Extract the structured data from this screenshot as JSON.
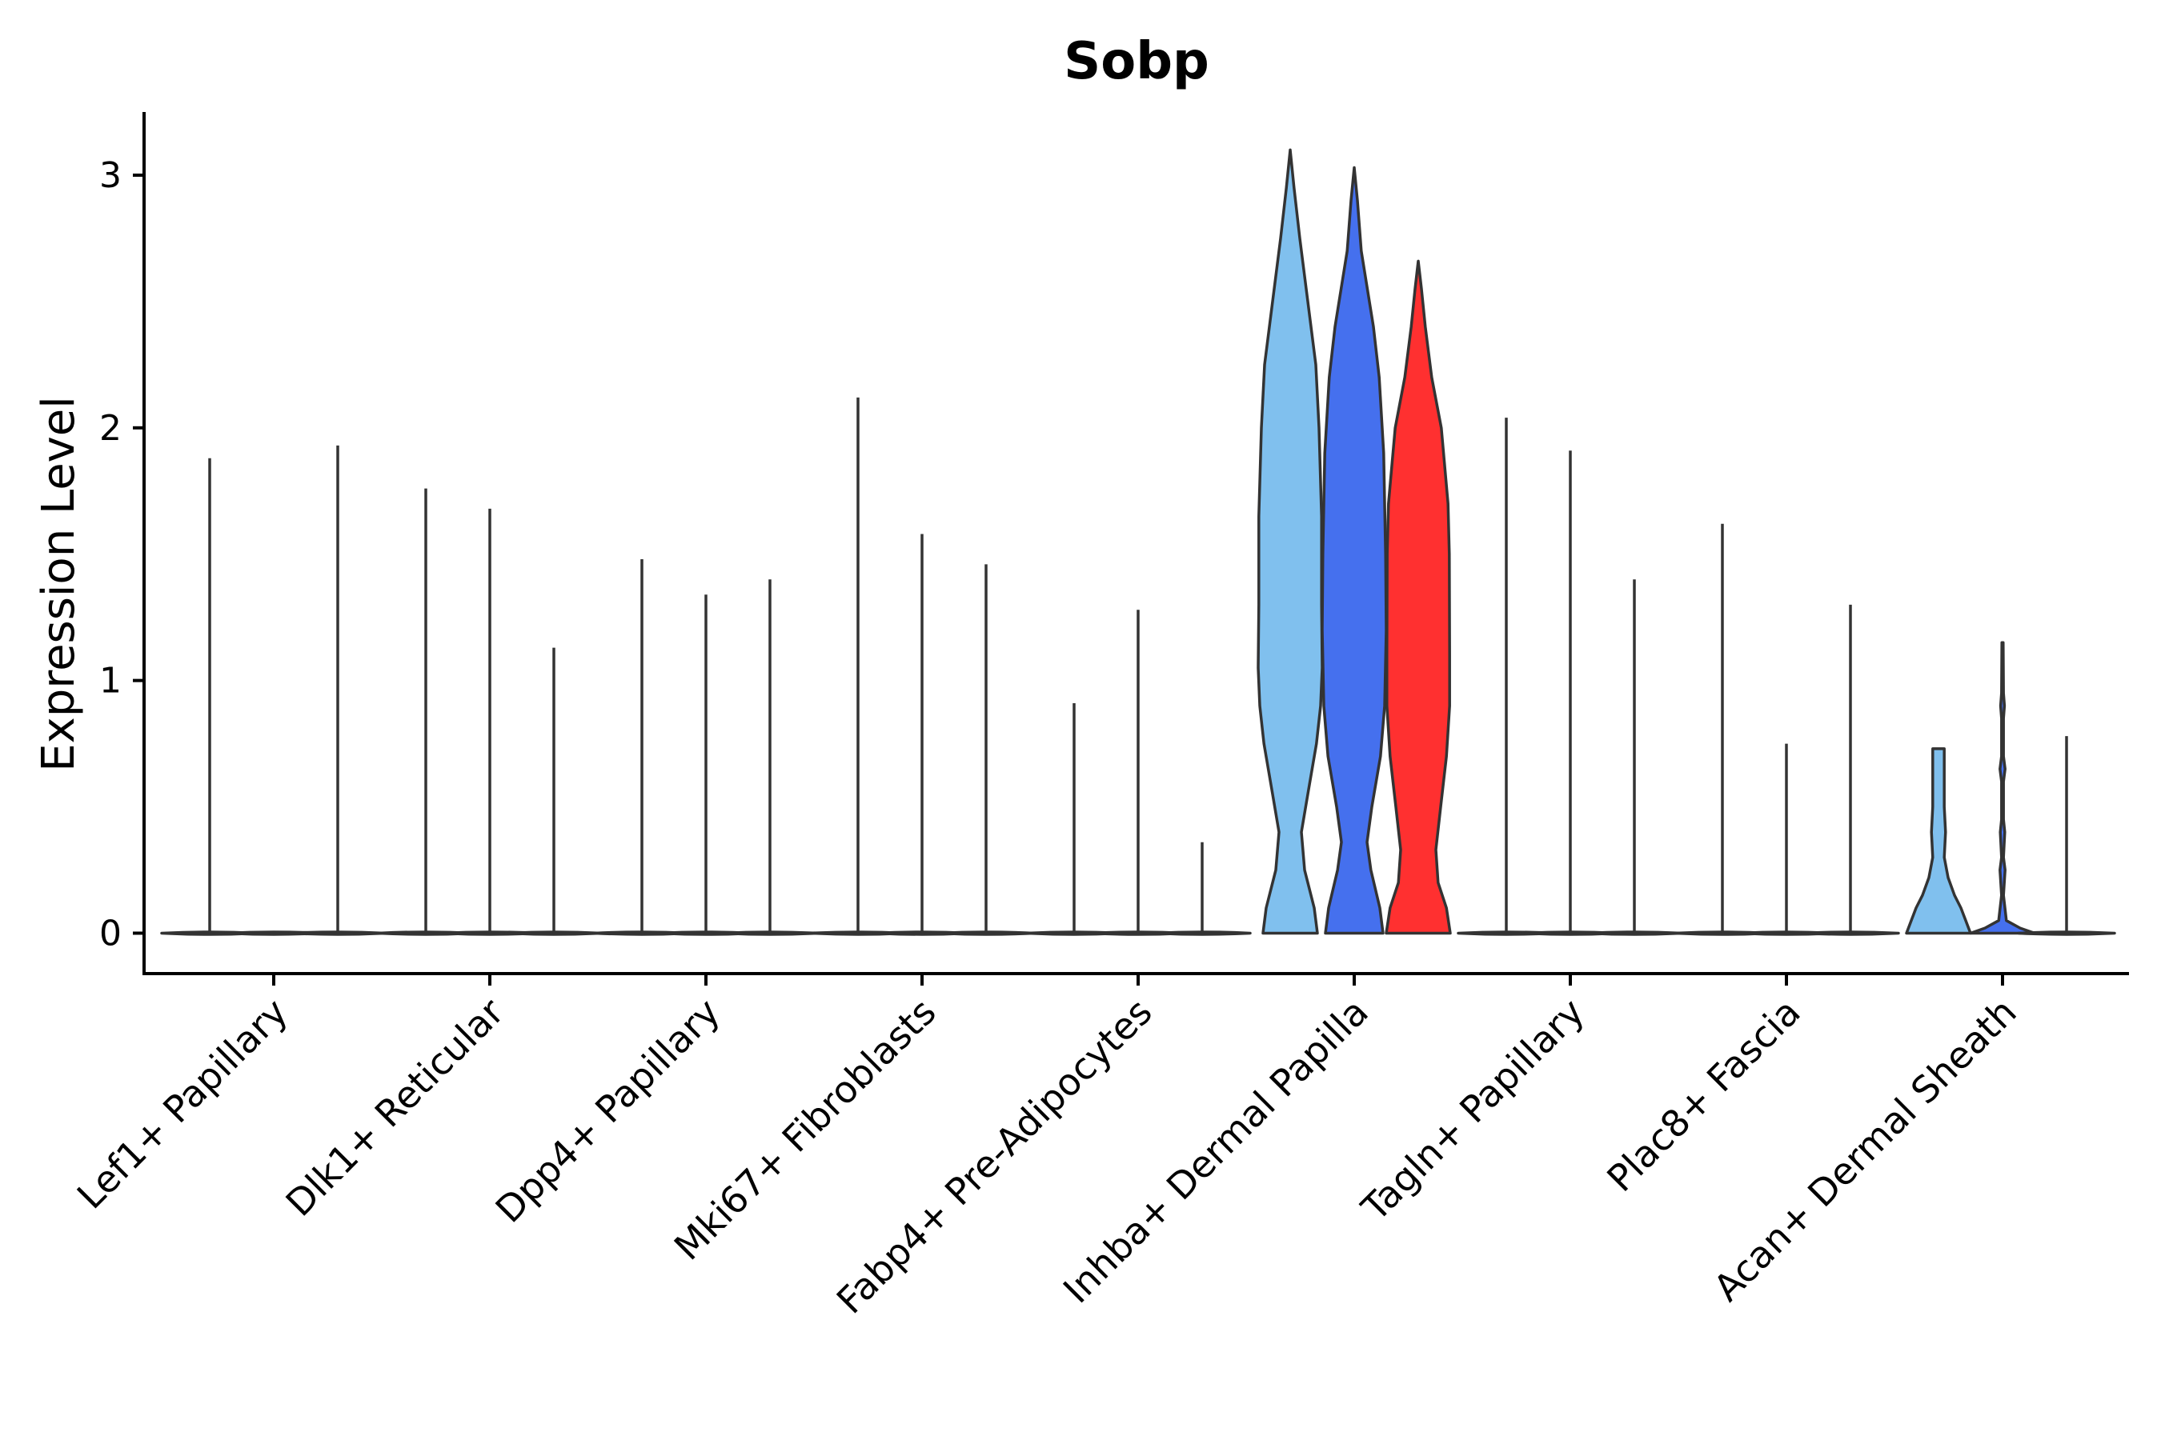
{
  "chart_data": {
    "type": "violin",
    "title": "Sobp",
    "xlabel": "",
    "ylabel": "Expression Level",
    "ylim": [
      -0.16,
      3.25
    ],
    "yticks": [
      0,
      1,
      2,
      3
    ],
    "colors": {
      "group1": "#80c0ee",
      "group2": "#4570ee",
      "group3": "#ff3030",
      "outline": "#333333"
    },
    "categories": [
      "Lef1+ Papillary",
      "Dlk1+ Reticular",
      "Dpp4+ Papillary",
      "Mki67+ Fibroblasts",
      "Fabp4+ Pre-Adipocytes",
      "Inhba+ Dermal Papilla",
      "Tagln+ Papillary",
      "Plac8+ Fascia",
      "Acan+ Dermal Sheath"
    ],
    "groups": [
      {
        "category": "Lef1+ Papillary",
        "violins": [
          {
            "color": "group1",
            "max": 1.88,
            "profile": []
          },
          {
            "color": "group2",
            "max": 0,
            "profile": []
          },
          {
            "color": "group3",
            "max": 1.93,
            "profile": []
          }
        ]
      },
      {
        "category": "Dlk1+ Reticular",
        "violins": [
          {
            "color": "group1",
            "max": 1.76,
            "profile": []
          },
          {
            "color": "group2",
            "max": 1.68,
            "profile": []
          },
          {
            "color": "group3",
            "max": 1.13,
            "profile": []
          }
        ]
      },
      {
        "category": "Dpp4+ Papillary",
        "violins": [
          {
            "color": "group1",
            "max": 1.48,
            "profile": []
          },
          {
            "color": "group2",
            "max": 1.34,
            "profile": []
          },
          {
            "color": "group3",
            "max": 1.4,
            "profile": []
          }
        ]
      },
      {
        "category": "Mki67+ Fibroblasts",
        "violins": [
          {
            "color": "group1",
            "max": 2.12,
            "profile": []
          },
          {
            "color": "group2",
            "max": 1.58,
            "profile": []
          },
          {
            "color": "group3",
            "max": 1.46,
            "profile": []
          }
        ]
      },
      {
        "category": "Fabp4+ Pre-Adipocytes",
        "violins": [
          {
            "color": "group1",
            "max": 0.91,
            "profile": []
          },
          {
            "color": "group2",
            "max": 1.28,
            "profile": []
          },
          {
            "color": "group3",
            "max": 0.36,
            "profile": []
          }
        ]
      },
      {
        "category": "Inhba+ Dermal Papilla",
        "violins": [
          {
            "color": "group1",
            "max": 3.1,
            "profile": [
              [
                0,
                0.85
              ],
              [
                0.1,
                0.75
              ],
              [
                0.25,
                0.45
              ],
              [
                0.4,
                0.35
              ],
              [
                0.55,
                0.55
              ],
              [
                0.75,
                0.82
              ],
              [
                0.9,
                0.95
              ],
              [
                1.05,
                1.0
              ],
              [
                1.3,
                0.98
              ],
              [
                1.65,
                0.98
              ],
              [
                2.0,
                0.9
              ],
              [
                2.25,
                0.8
              ],
              [
                2.5,
                0.55
              ],
              [
                2.75,
                0.3
              ],
              [
                2.95,
                0.12
              ],
              [
                3.1,
                0
              ]
            ]
          },
          {
            "color": "group2",
            "max": 3.03,
            "profile": [
              [
                0,
                0.9
              ],
              [
                0.1,
                0.8
              ],
              [
                0.25,
                0.52
              ],
              [
                0.36,
                0.4
              ],
              [
                0.5,
                0.55
              ],
              [
                0.7,
                0.82
              ],
              [
                0.9,
                0.95
              ],
              [
                1.2,
                1.0
              ],
              [
                1.5,
                0.98
              ],
              [
                1.9,
                0.92
              ],
              [
                2.2,
                0.78
              ],
              [
                2.4,
                0.6
              ],
              [
                2.7,
                0.22
              ],
              [
                2.9,
                0.1
              ],
              [
                3.03,
                0
              ]
            ]
          },
          {
            "color": "group3",
            "max": 2.66,
            "profile": [
              [
                0,
                1.0
              ],
              [
                0.1,
                0.88
              ],
              [
                0.2,
                0.62
              ],
              [
                0.33,
                0.55
              ],
              [
                0.5,
                0.7
              ],
              [
                0.7,
                0.88
              ],
              [
                0.9,
                0.98
              ],
              [
                1.1,
                0.98
              ],
              [
                1.5,
                0.97
              ],
              [
                1.7,
                0.93
              ],
              [
                2.0,
                0.72
              ],
              [
                2.2,
                0.42
              ],
              [
                2.4,
                0.22
              ],
              [
                2.55,
                0.1
              ],
              [
                2.66,
                0
              ]
            ]
          }
        ]
      },
      {
        "category": "Tagln+ Papillary",
        "violins": [
          {
            "color": "group1",
            "max": 2.04,
            "profile": []
          },
          {
            "color": "group2",
            "max": 1.91,
            "profile": []
          },
          {
            "color": "group3",
            "max": 1.4,
            "profile": []
          }
        ]
      },
      {
        "category": "Plac8+ Fascia",
        "violins": [
          {
            "color": "group1",
            "max": 1.62,
            "profile": []
          },
          {
            "color": "group2",
            "max": 0.75,
            "profile": []
          },
          {
            "color": "group3",
            "max": 1.3,
            "profile": []
          }
        ]
      },
      {
        "category": "Acan+ Dermal Sheath",
        "violins": [
          {
            "color": "group1",
            "max": 0.73,
            "profile": [
              [
                0,
                1.0
              ],
              [
                0.05,
                0.85
              ],
              [
                0.1,
                0.7
              ],
              [
                0.15,
                0.5
              ],
              [
                0.22,
                0.3
              ],
              [
                0.3,
                0.18
              ],
              [
                0.4,
                0.22
              ],
              [
                0.5,
                0.18
              ],
              [
                0.6,
                0.18
              ],
              [
                0.7,
                0.18
              ],
              [
                0.73,
                0.18
              ]
            ]
          },
          {
            "color": "group2",
            "max": 1.15,
            "profile": [
              [
                0,
                1.0
              ],
              [
                0.02,
                0.55
              ],
              [
                0.05,
                0.12
              ],
              [
                0.15,
                0.03
              ],
              [
                0.25,
                0.08
              ],
              [
                0.3,
                0.03
              ],
              [
                0.4,
                0.07
              ],
              [
                0.45,
                0.03
              ],
              [
                0.6,
                0.03
              ],
              [
                0.65,
                0.08
              ],
              [
                0.7,
                0.03
              ],
              [
                0.85,
                0.03
              ],
              [
                0.9,
                0.06
              ],
              [
                0.95,
                0.03
              ],
              [
                1.15,
                0.02
              ]
            ]
          },
          {
            "color": "group3",
            "max": 0.78,
            "profile": []
          }
        ]
      }
    ]
  }
}
